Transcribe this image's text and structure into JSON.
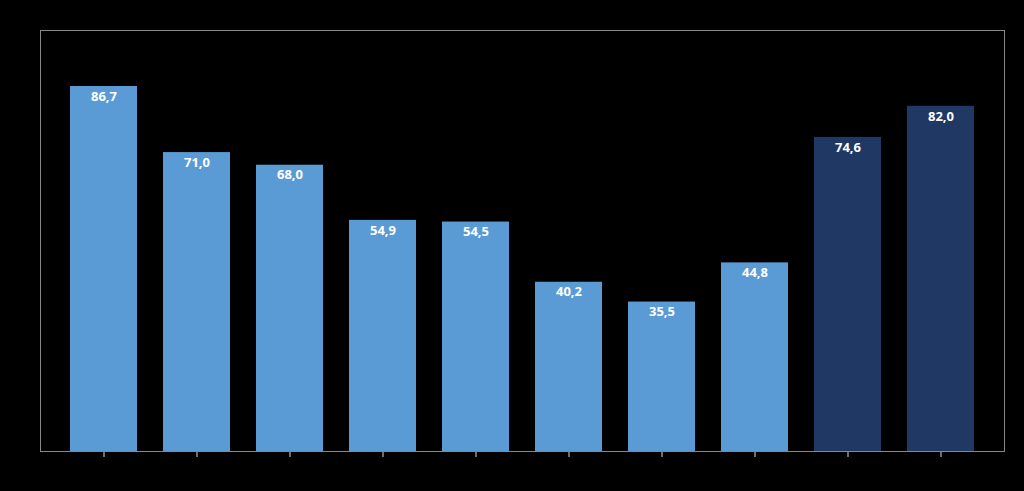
{
  "chart_data": {
    "type": "bar",
    "categories": [
      null,
      null,
      null,
      null,
      null,
      null,
      null,
      null,
      null,
      null
    ],
    "values": [
      86.7,
      71.0,
      68.0,
      54.9,
      54.5,
      40.2,
      35.5,
      44.8,
      74.6,
      82.0
    ],
    "value_labels": [
      "86,7",
      "71,0",
      "68,0",
      "54,9",
      "54,5",
      "40,2",
      "35,5",
      "44,8",
      "74,6",
      "82,0"
    ],
    "colors": [
      "#5B9BD5",
      "#5B9BD5",
      "#5B9BD5",
      "#5B9BD5",
      "#5B9BD5",
      "#5B9BD5",
      "#5B9BD5",
      "#5B9BD5",
      "#1F3864",
      "#1F3864"
    ],
    "ylim": [
      0,
      100
    ],
    "yticks": [],
    "grid": false,
    "data_labels": true,
    "tick_labels": false
  }
}
